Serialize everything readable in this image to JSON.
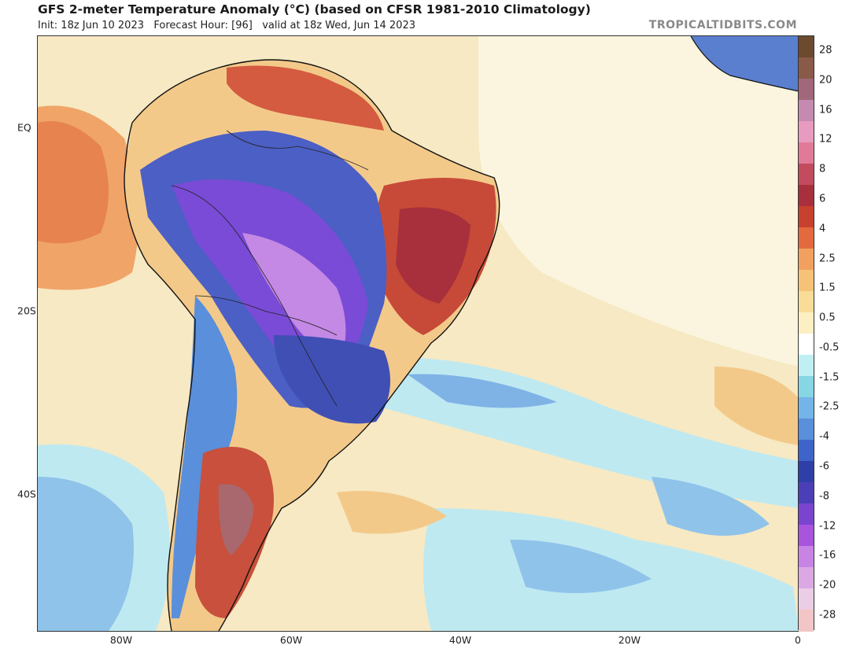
{
  "header": {
    "title": "GFS 2-meter Temperature Anomaly (°C) (based on CFSR 1981-2010 Climatology)",
    "subtitle": "Init: 18z Jun 10 2023   Forecast Hour: [96]   valid at 18z Wed, Jun 14 2023",
    "brand": "TROPICALTIDBITS.COM"
  },
  "axes": {
    "lat_labels": [
      "EQ",
      "20S",
      "40S"
    ],
    "lon_labels": [
      "80W",
      "60W",
      "40W",
      "20W",
      "0"
    ]
  },
  "colorbar": {
    "labels": [
      "28",
      "20",
      "16",
      "12",
      "8",
      "6",
      "4",
      "2.5",
      "1.5",
      "0.5",
      "-0.5",
      "-1.5",
      "-2.5",
      "-4",
      "-6",
      "-8",
      "-12",
      "-16",
      "-20",
      "-28"
    ],
    "colors": [
      "#6b4a2e",
      "#8a5a48",
      "#a0687a",
      "#c48ab0",
      "#e79bbf",
      "#e07a98",
      "#c24b5e",
      "#a8303c",
      "#c8402e",
      "#e26a3e",
      "#f2a060",
      "#f6c277",
      "#f9dc97",
      "#fcefc3",
      "#ffffff",
      "#bfeff2",
      "#86d6e4",
      "#74b4e8",
      "#5a8fdb",
      "#3f64c9",
      "#2f3fa8",
      "#4b3fb8",
      "#7a44cf",
      "#a854dc",
      "#c784e4",
      "#dca8e3",
      "#ebcde6",
      "#f2c6c6"
    ]
  },
  "map": {
    "region": "South America and South Atlantic",
    "colors": {
      "neutral": "#f6e9c3",
      "near_zero": "#fcf6e2",
      "warm_light": "#f3c98a",
      "warm": "#e2754a",
      "warm_strong": "#b83c34",
      "cool_light": "#bfe9f1",
      "cool": "#7fb3e6",
      "cold": "#4b5fc4",
      "very_cold": "#7a4bd6",
      "extreme_cold": "#c489e4",
      "coast": "#111111"
    }
  }
}
